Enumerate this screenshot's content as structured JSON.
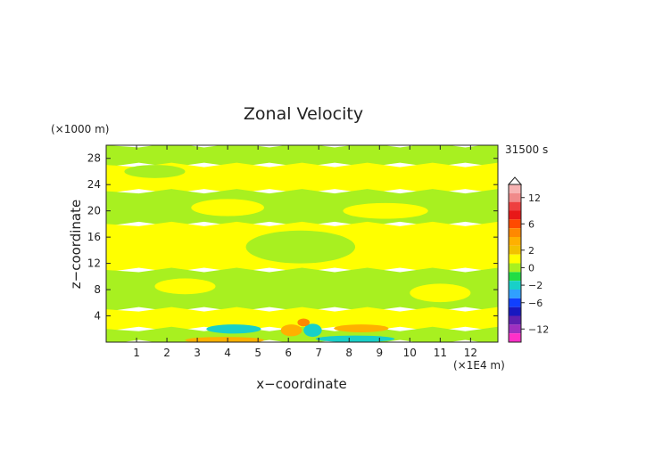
{
  "chart_data": {
    "type": "heatmap",
    "title": "Zonal Velocity",
    "time_label": "31500 s",
    "xlabel": "x−coordinate",
    "ylabel": "z−coordinate",
    "x_unit": "(×1E4 m)",
    "y_unit": "(×1000 m)",
    "xlim": [
      0,
      12.9
    ],
    "ylim": [
      0,
      30
    ],
    "x_ticks": [
      "1",
      "2",
      "3",
      "4",
      "5",
      "6",
      "7",
      "8",
      "9",
      "10",
      "11",
      "12"
    ],
    "y_ticks": [
      "4",
      "8",
      "12",
      "16",
      "20",
      "24",
      "28"
    ],
    "colorbar": {
      "labels": [
        "12",
        "6",
        "2",
        "0",
        "−2",
        "−6",
        "−12"
      ],
      "levels": [
        {
          "value": 14,
          "color": "#f7b3b3"
        },
        {
          "value": 12,
          "color": "#f08a8a"
        },
        {
          "value": 10,
          "color": "#ee4040"
        },
        {
          "value": 8,
          "color": "#e81818"
        },
        {
          "value": 6,
          "color": "#ff4a00"
        },
        {
          "value": 4,
          "color": "#ff8800"
        },
        {
          "value": 3,
          "color": "#ffb000"
        },
        {
          "value": 2,
          "color": "#f2c200"
        },
        {
          "value": 1,
          "color": "#ffff00"
        },
        {
          "value": 0,
          "color": "#a8f020"
        },
        {
          "value": -1,
          "color": "#22dd44"
        },
        {
          "value": -2,
          "color": "#18d0c8"
        },
        {
          "value": -4,
          "color": "#30a0ff"
        },
        {
          "value": -6,
          "color": "#1040ff"
        },
        {
          "value": -8,
          "color": "#1818c0"
        },
        {
          "value": -10,
          "color": "#6020b0"
        },
        {
          "value": -12,
          "color": "#a030c0"
        },
        {
          "value": -14,
          "color": "#ff30c8"
        }
      ]
    },
    "regions": [
      {
        "kind": "band",
        "value": 0,
        "z_top": 30,
        "z_bottom": 27,
        "x0": 0,
        "x1": 12.9
      },
      {
        "kind": "band",
        "value": 1,
        "z_top": 27,
        "z_bottom": 23,
        "x0": 0,
        "x1": 12.9
      },
      {
        "kind": "band",
        "value": 0,
        "z_top": 23,
        "z_bottom": 18,
        "x0": 0,
        "x1": 12.9
      },
      {
        "kind": "band",
        "value": 1,
        "z_top": 18,
        "z_bottom": 11,
        "x0": 0,
        "x1": 12.9
      },
      {
        "kind": "band",
        "value": 0,
        "z_top": 11,
        "z_bottom": 5,
        "x0": 0,
        "x1": 12.9
      },
      {
        "kind": "band",
        "value": 1,
        "z_top": 5,
        "z_bottom": 2,
        "x0": 0,
        "x1": 12.9
      },
      {
        "kind": "band",
        "value": 0,
        "z_top": 2,
        "z_bottom": 0,
        "x0": 0,
        "x1": 12.9
      },
      {
        "kind": "blob",
        "value": 0,
        "x": 1.6,
        "z": 26.0,
        "rx": 1.0,
        "rz": 1.0
      },
      {
        "kind": "blob",
        "value": 1,
        "x": 4.0,
        "z": 20.5,
        "rx": 1.2,
        "rz": 1.3
      },
      {
        "kind": "blob",
        "value": 1,
        "x": 9.2,
        "z": 20.0,
        "rx": 1.4,
        "rz": 1.2
      },
      {
        "kind": "blob",
        "value": 0,
        "x": 6.4,
        "z": 14.5,
        "rx": 1.8,
        "rz": 2.5
      },
      {
        "kind": "blob",
        "value": 1,
        "x": 2.6,
        "z": 8.5,
        "rx": 1.0,
        "rz": 1.2
      },
      {
        "kind": "blob",
        "value": 1,
        "x": 11.0,
        "z": 7.5,
        "rx": 1.0,
        "rz": 1.4
      },
      {
        "kind": "blob",
        "value": -2,
        "x": 4.2,
        "z": 2.0,
        "rx": 0.9,
        "rz": 0.7
      },
      {
        "kind": "blob",
        "value": -2,
        "x": 8.2,
        "z": 0.5,
        "rx": 1.3,
        "rz": 0.5
      },
      {
        "kind": "blob",
        "value": 3,
        "x": 8.4,
        "z": 2.1,
        "rx": 0.9,
        "rz": 0.6
      },
      {
        "kind": "blob",
        "value": 3,
        "x": 3.9,
        "z": 0.3,
        "rx": 1.3,
        "rz": 0.5
      },
      {
        "kind": "blob",
        "value": 3,
        "x": 6.1,
        "z": 1.8,
        "rx": 0.35,
        "rz": 0.9
      },
      {
        "kind": "blob",
        "value": -2,
        "x": 6.8,
        "z": 1.8,
        "rx": 0.3,
        "rz": 1.0
      },
      {
        "kind": "blob",
        "value": 4,
        "x": 6.5,
        "z": 3.0,
        "rx": 0.2,
        "rz": 0.6
      }
    ]
  }
}
